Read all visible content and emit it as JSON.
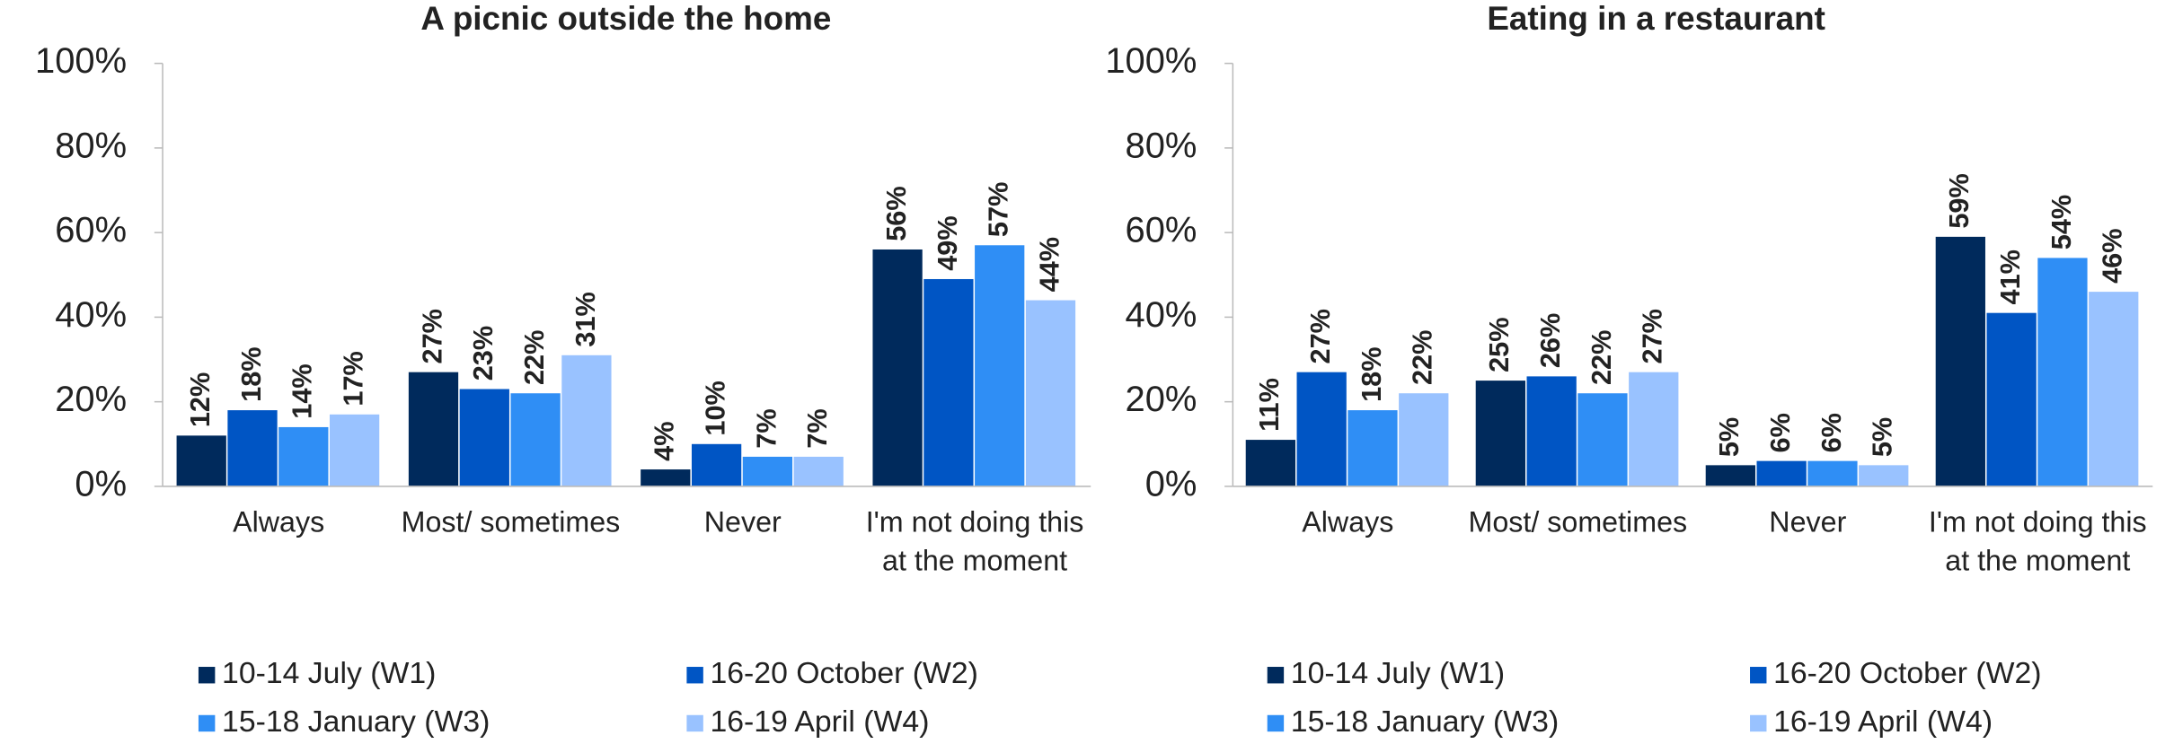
{
  "chart_data": [
    {
      "type": "bar",
      "title": "A picnic outside the home",
      "categories": [
        "Always",
        "Most/ sometimes",
        "Never",
        "I'm not doing this at the moment"
      ],
      "ylim": [
        0,
        100
      ],
      "yticks": [
        {
          "value": 0,
          "label": "0%"
        },
        {
          "value": 20,
          "label": "20%"
        },
        {
          "value": 40,
          "label": "40%"
        },
        {
          "value": 60,
          "label": "60%"
        },
        {
          "value": 80,
          "label": "80%"
        },
        {
          "value": 100,
          "label": "100%"
        }
      ],
      "legend": "bottom",
      "series": [
        {
          "name": "10-14 July (W1)",
          "color": "#002a5c",
          "values": [
            12,
            27,
            4,
            56
          ],
          "value_labels": [
            "12%",
            "27%",
            "4%",
            "56%"
          ]
        },
        {
          "name": "16-20 October (W2)",
          "color": "#0055c4",
          "values": [
            18,
            23,
            10,
            49
          ],
          "value_labels": [
            "18%",
            "23%",
            "10%",
            "49%"
          ]
        },
        {
          "name": "15-18 January (W3)",
          "color": "#2f8ef5",
          "values": [
            14,
            22,
            7,
            57
          ],
          "value_labels": [
            "14%",
            "22%",
            "7%",
            "57%"
          ]
        },
        {
          "name": "16-19 April (W4)",
          "color": "#99c2ff",
          "values": [
            17,
            31,
            7,
            44
          ],
          "value_labels": [
            "17%",
            "31%",
            "7%",
            "44%"
          ]
        }
      ]
    },
    {
      "type": "bar",
      "title": "Eating in a restaurant",
      "categories": [
        "Always",
        "Most/ sometimes",
        "Never",
        "I'm not doing this at the moment"
      ],
      "ylim": [
        0,
        100
      ],
      "yticks": [
        {
          "value": 0,
          "label": "0%"
        },
        {
          "value": 20,
          "label": "20%"
        },
        {
          "value": 40,
          "label": "40%"
        },
        {
          "value": 60,
          "label": "60%"
        },
        {
          "value": 80,
          "label": "80%"
        },
        {
          "value": 100,
          "label": "100%"
        }
      ],
      "legend": "bottom",
      "series": [
        {
          "name": "10-14 July (W1)",
          "color": "#002a5c",
          "values": [
            11,
            25,
            5,
            59
          ],
          "value_labels": [
            "11%",
            "25%",
            "5%",
            "59%"
          ]
        },
        {
          "name": "16-20 October (W2)",
          "color": "#0055c4",
          "values": [
            27,
            26,
            6,
            41
          ],
          "value_labels": [
            "27%",
            "26%",
            "6%",
            "41%"
          ]
        },
        {
          "name": "15-18 January (W3)",
          "color": "#2f8ef5",
          "values": [
            18,
            22,
            6,
            54
          ],
          "value_labels": [
            "18%",
            "22%",
            "6%",
            "54%"
          ]
        },
        {
          "name": "16-19 April (W4)",
          "color": "#99c2ff",
          "values": [
            22,
            27,
            5,
            46
          ],
          "value_labels": [
            "22%",
            "27%",
            "5%",
            "46%"
          ]
        }
      ]
    }
  ]
}
